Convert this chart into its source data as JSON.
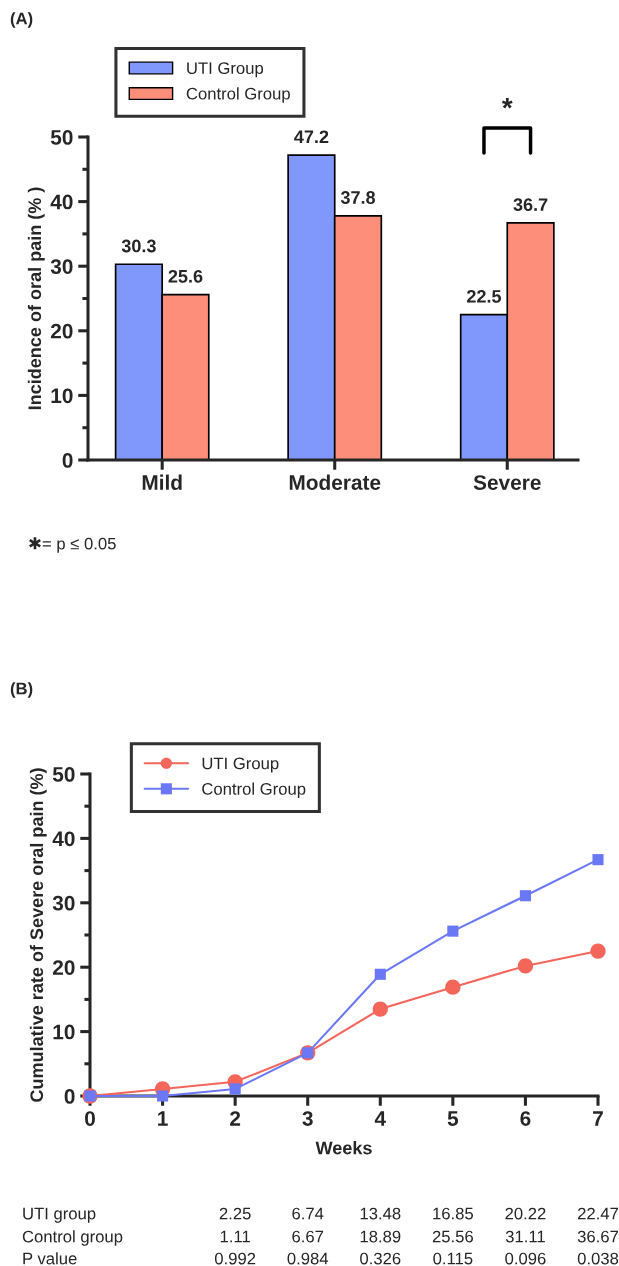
{
  "chart_data": [
    {
      "type": "bar",
      "title": "(A)",
      "ylabel": "Incidence of oral pain (% )",
      "categories": [
        "Mild",
        "Moderate",
        "Severe"
      ],
      "series": [
        {
          "name": "UTI Group",
          "color": "#8097fb",
          "values": [
            30.3,
            47.2,
            22.5
          ]
        },
        {
          "name": "Control Group",
          "color": "#fd8f7a",
          "values": [
            25.6,
            37.8,
            36.7
          ]
        }
      ],
      "data_labels": true,
      "ylim": [
        0,
        50
      ],
      "yticks": [
        0,
        10,
        20,
        30,
        40,
        50
      ],
      "legend": "top left",
      "grid": false,
      "annotations": [
        "*",
        "✱= p ≤ 0.05"
      ]
    },
    {
      "type": "line",
      "title": "(B)",
      "xlabel": "Weeks",
      "ylabel": "Cumulative rate of Severe oral pain (%)",
      "x": [
        0,
        1,
        2,
        3,
        4,
        5,
        6,
        7
      ],
      "series": [
        {
          "name": "UTI Group",
          "color": "#f4655a",
          "marker": "circle",
          "values": [
            0,
            1.1,
            2.2,
            6.7,
            13.5,
            16.9,
            20.2,
            22.5
          ]
        },
        {
          "name": "Control Group",
          "color": "#6b78f5",
          "marker": "square",
          "values": [
            0,
            0,
            1.1,
            6.7,
            18.9,
            25.6,
            31.1,
            36.7
          ]
        }
      ],
      "xlim": [
        0,
        7
      ],
      "xticks": [
        0,
        1,
        2,
        3,
        4,
        5,
        6,
        7
      ],
      "ylim": [
        0,
        50
      ],
      "yticks": [
        0,
        10,
        20,
        30,
        40,
        50
      ],
      "legend": "top left",
      "grid": false,
      "line_style": "solid",
      "annotations": [
        "UTI group",
        "2.25",
        "6.74",
        "13.48",
        "16.85",
        "20.22",
        "22.47",
        "Control group",
        "1.11",
        "6.67",
        "18.89",
        "25.56",
        "31.11",
        "36.67",
        "P value",
        "0.992",
        "0.984",
        "0.326",
        "0.115",
        "0.096",
        "0.038"
      ]
    }
  ]
}
